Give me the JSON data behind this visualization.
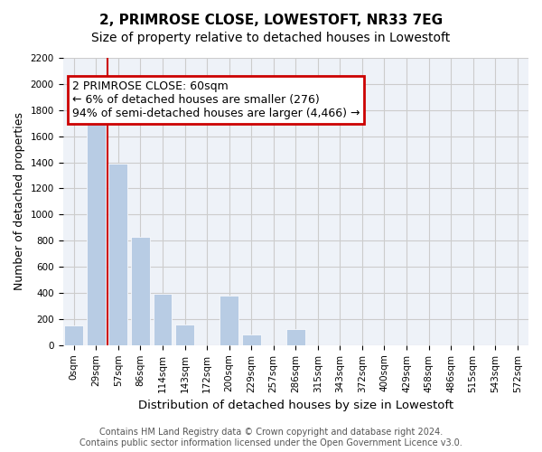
{
  "title": "2, PRIMROSE CLOSE, LOWESTOFT, NR33 7EG",
  "subtitle": "Size of property relative to detached houses in Lowestoft",
  "xlabel": "Distribution of detached houses by size in Lowestoft",
  "ylabel": "Number of detached properties",
  "bin_labels": [
    "0sqm",
    "29sqm",
    "57sqm",
    "86sqm",
    "114sqm",
    "143sqm",
    "172sqm",
    "200sqm",
    "229sqm",
    "257sqm",
    "286sqm",
    "315sqm",
    "343sqm",
    "372sqm",
    "400sqm",
    "429sqm",
    "458sqm",
    "486sqm",
    "515sqm",
    "543sqm",
    "572sqm"
  ],
  "bar_values": [
    150,
    1700,
    1390,
    830,
    390,
    160,
    0,
    380,
    80,
    0,
    120,
    0,
    0,
    0,
    0,
    0,
    0,
    0,
    0,
    0,
    0
  ],
  "bar_color": "#b8cce4",
  "bar_edge_color": "#ffffff",
  "red_line_x": 1.5,
  "annotation_text": "2 PRIMROSE CLOSE: 60sqm\n← 6% of detached houses are smaller (276)\n94% of semi-detached houses are larger (4,466) →",
  "annotation_box_color": "#cc0000",
  "ylim": [
    0,
    2200
  ],
  "yticks": [
    0,
    200,
    400,
    600,
    800,
    1000,
    1200,
    1400,
    1600,
    1800,
    2000,
    2200
  ],
  "grid_color": "#cccccc",
  "bg_color": "#eef2f8",
  "footer": "Contains HM Land Registry data © Crown copyright and database right 2024.\nContains public sector information licensed under the Open Government Licence v3.0.",
  "title_fontsize": 11,
  "subtitle_fontsize": 10,
  "axis_label_fontsize": 9,
  "tick_fontsize": 7.5,
  "footer_fontsize": 7
}
